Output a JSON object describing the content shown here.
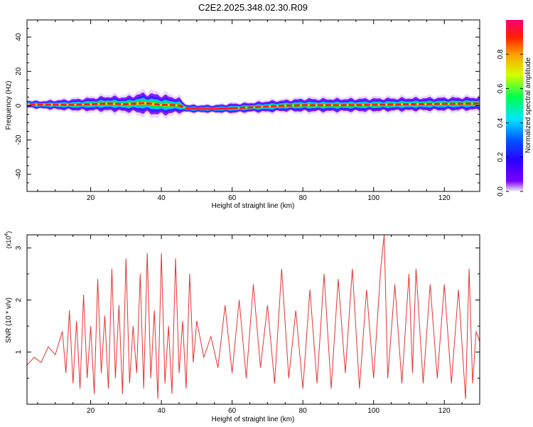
{
  "title": "C2E2.2025.348.02.30.R09",
  "chart_data": [
    {
      "type": "heatmap",
      "title": "C2E2.2025.348.02.30.R09",
      "xlabel": "Height of straight line (km)",
      "ylabel": "Frequency (Hz)",
      "xlim": [
        2,
        130
      ],
      "ylim": [
        -50,
        50
      ],
      "xticks": [
        20,
        40,
        60,
        80,
        100,
        120
      ],
      "xtick_labels": [
        "20",
        "40",
        "60",
        "80",
        "100",
        "120"
      ],
      "yticks": [
        -40,
        -20,
        0,
        20,
        40
      ],
      "ytick_labels": [
        "-40",
        "-20",
        "0",
        "20",
        "40"
      ],
      "colorbar": {
        "label": "Normalized spectral amplitude",
        "range": [
          0.0,
          1.0
        ],
        "ticks": [
          0.0,
          0.2,
          0.4,
          0.6,
          0.8
        ],
        "tick_labels": [
          "0.0",
          "0.2",
          "0.4",
          "0.6",
          "0.8"
        ]
      },
      "ridge": {
        "description_points_height_km": [
          2,
          5,
          10,
          15,
          20,
          25,
          30,
          35,
          40,
          45,
          47,
          50,
          55,
          60,
          65,
          70,
          75,
          80,
          90,
          100,
          110,
          120,
          130
        ],
        "frequency_hz": [
          1,
          0.5,
          0.5,
          0.5,
          0.8,
          1.2,
          0.8,
          1.5,
          0.5,
          0.2,
          -1.5,
          -1.8,
          -1.8,
          -1.5,
          -1.0,
          -0.5,
          0,
          0.3,
          0.3,
          0.5,
          0.8,
          1.0,
          1.2
        ],
        "halfwidth_hz": [
          2,
          2,
          2.5,
          3,
          3.5,
          4,
          4,
          5.5,
          5.5,
          4,
          2,
          2,
          2,
          2.5,
          2.5,
          3,
          3,
          3.5,
          3.5,
          3.5,
          3.5,
          3.5,
          3.5
        ]
      }
    },
    {
      "type": "line",
      "xlabel": "Height of straight line (km)",
      "ylabel": "SNR (10 * v/v)",
      "yscale_label": "(x10",
      "yscale_exp": "4",
      "yscale_close": ")",
      "xlim": [
        2,
        130
      ],
      "ylim": [
        0,
        3.25
      ],
      "xticks": [
        20,
        40,
        60,
        80,
        100,
        120
      ],
      "xtick_labels": [
        "20",
        "40",
        "60",
        "80",
        "100",
        "120"
      ],
      "yticks": [
        1,
        2,
        3
      ],
      "ytick_labels": [
        "1",
        "2",
        "3"
      ],
      "color": "#e8312f",
      "series": [
        {
          "name": "SNR",
          "x": [
            2,
            4,
            6,
            8,
            10,
            12,
            13,
            14,
            15,
            16,
            17,
            18,
            19,
            20,
            21,
            22,
            23,
            24,
            25,
            26,
            27,
            28,
            29,
            30,
            31,
            32,
            33,
            34,
            35,
            36,
            37,
            38,
            39,
            40,
            41,
            42,
            43,
            44,
            45,
            46,
            47,
            48,
            49,
            50,
            52,
            54,
            56,
            58,
            60,
            62,
            64,
            66,
            68,
            70,
            72,
            74,
            76,
            78,
            80,
            82,
            84,
            86,
            88,
            90,
            92,
            94,
            96,
            98,
            100,
            102,
            103,
            104,
            106,
            108,
            110,
            111,
            112,
            114,
            116,
            118,
            120,
            122,
            124,
            126,
            127,
            128,
            129,
            130
          ],
          "y": [
            0.75,
            0.9,
            0.8,
            1.1,
            0.95,
            1.4,
            0.6,
            1.8,
            0.4,
            1.6,
            0.3,
            2.1,
            0.5,
            1.5,
            0.2,
            2.4,
            0.6,
            1.7,
            0.3,
            2.6,
            0.5,
            1.9,
            0.2,
            2.8,
            0.4,
            1.5,
            0.6,
            2.5,
            0.3,
            2.9,
            0.5,
            1.8,
            0.1,
            2.9,
            0.4,
            1.5,
            0.2,
            2.8,
            0.6,
            1.6,
            0.3,
            2.5,
            0.8,
            1.6,
            0.9,
            1.3,
            0.7,
            1.9,
            0.6,
            2.0,
            0.5,
            2.3,
            0.7,
            1.9,
            0.4,
            2.6,
            0.5,
            1.8,
            0.3,
            2.2,
            0.4,
            2.5,
            0.3,
            2.4,
            0.6,
            2.6,
            0.3,
            2.2,
            0.5,
            2.6,
            3.25,
            0.5,
            2.3,
            0.4,
            2.5,
            0.6,
            2.6,
            0.4,
            2.3,
            0.5,
            2.3,
            0.4,
            2.2,
            0.1,
            2.6,
            0.4,
            1.4,
            1.2
          ]
        }
      ]
    }
  ]
}
